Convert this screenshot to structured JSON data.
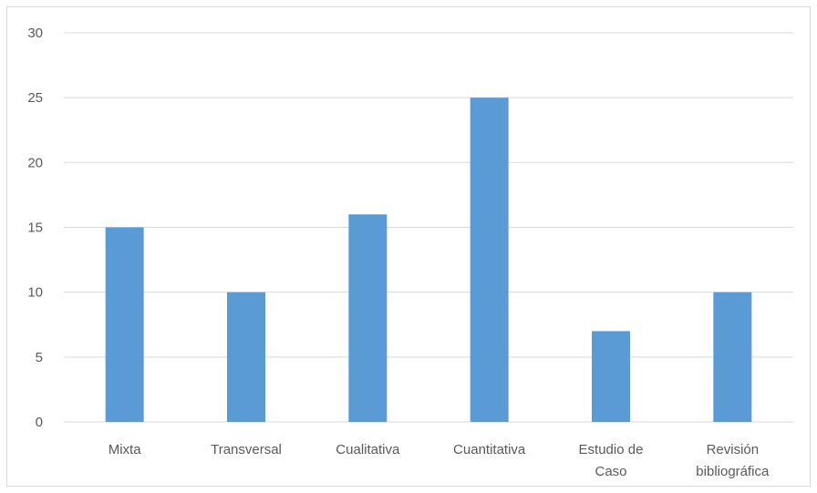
{
  "chart_data": {
    "type": "bar",
    "categories": [
      [
        "Mixta"
      ],
      [
        "Transversal"
      ],
      [
        "Cualitativa"
      ],
      [
        "Cuantitativa"
      ],
      [
        "Estudio de",
        "Caso"
      ],
      [
        "Revisión",
        "bibliográfica"
      ]
    ],
    "values": [
      15,
      10,
      16,
      25,
      7,
      10
    ],
    "title": "",
    "xlabel": "",
    "ylabel": "",
    "ylim": [
      0,
      30
    ],
    "yticks": [
      "0",
      "5",
      "10",
      "15",
      "20",
      "25",
      "30"
    ],
    "grid": true,
    "legend": "none",
    "bar_color": "#5b9bd5",
    "grid_color": "#d9d9d9",
    "text_color": "#595959"
  }
}
